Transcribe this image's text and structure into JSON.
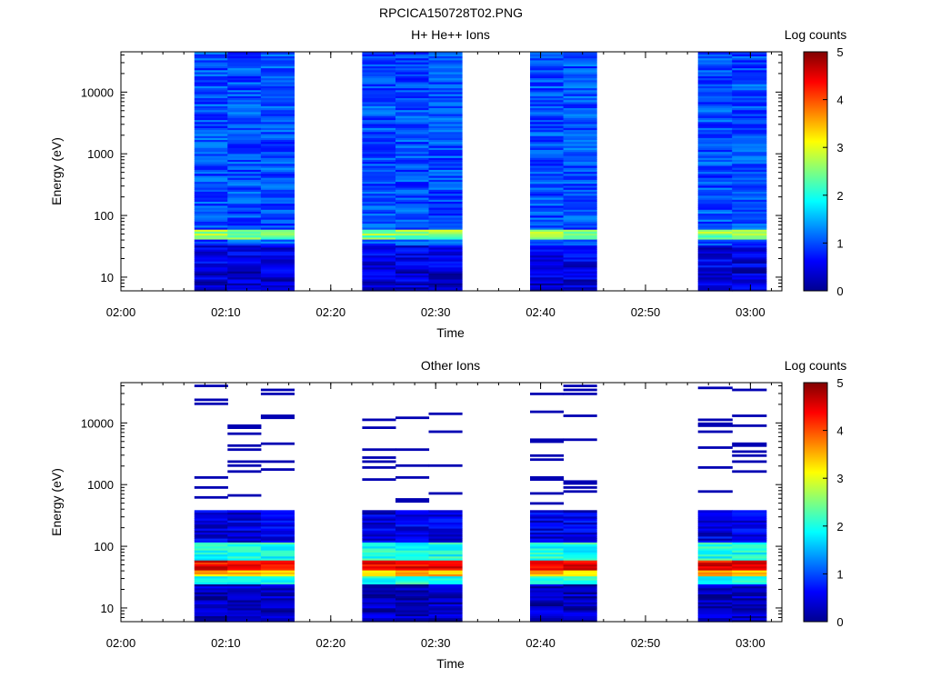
{
  "page_title": "RPCICA150728T02.PNG",
  "chart_data": [
    {
      "type": "heatmap",
      "title": "H+ He++ Ions",
      "xlabel": "Time",
      "ylabel": "Energy (eV)",
      "colorbar_label": "Log counts",
      "colorbar_ticks": [
        "0",
        "1",
        "2",
        "3",
        "4",
        "5"
      ],
      "clim": [
        0,
        5
      ],
      "colormap": "jet",
      "yscale": "log",
      "ylim": [
        6,
        45000
      ],
      "y_ticks": [
        "10",
        "100",
        "1000",
        "10000"
      ],
      "x_ticks": [
        "02:00",
        "02:10",
        "02:20",
        "02:30",
        "02:40",
        "02:50",
        "03:00"
      ],
      "xlim_minutes": [
        0,
        63
      ],
      "data_gaps": "white (no data) between sweep blocks",
      "time_blocks": [
        {
          "start": "02:07",
          "end": "02:16:30",
          "columns": 3
        },
        {
          "start": "02:23",
          "end": "02:32:30",
          "columns": 3
        },
        {
          "start": "02:39",
          "end": "02:45:20",
          "columns": 2
        },
        {
          "start": "02:55",
          "end": "03:01:30",
          "columns": 2
        }
      ],
      "energy_profile": [
        {
          "energy_range": "6-14 eV",
          "log_counts": 0.4
        },
        {
          "energy_range": "14-25 eV",
          "log_counts": 0.5
        },
        {
          "energy_range": "25-32 eV",
          "log_counts": 0.5
        },
        {
          "energy_range": "32-40 eV",
          "log_counts": 1.0
        },
        {
          "energy_range": "40-48 eV",
          "log_counts": 2.4
        },
        {
          "energy_range": "48-58 eV",
          "log_counts": 2.6
        },
        {
          "energy_range": "58-45000 eV",
          "log_counts": 1.0
        }
      ]
    },
    {
      "type": "heatmap",
      "title": "Other Ions",
      "xlabel": "Time",
      "ylabel": "Energy (eV)",
      "colorbar_label": "Log counts",
      "colorbar_ticks": [
        "0",
        "1",
        "2",
        "3",
        "4",
        "5"
      ],
      "clim": [
        0,
        5
      ],
      "colormap": "jet",
      "yscale": "log",
      "ylim": [
        6,
        45000
      ],
      "y_ticks": [
        "10",
        "100",
        "1000",
        "10000"
      ],
      "x_ticks": [
        "02:00",
        "02:10",
        "02:20",
        "02:30",
        "02:40",
        "02:50",
        "03:00"
      ],
      "xlim_minutes": [
        0,
        63
      ],
      "data_gaps": "white (no data) between sweep blocks",
      "time_blocks": [
        {
          "start": "02:07",
          "end": "02:16:30",
          "columns": 3
        },
        {
          "start": "02:23",
          "end": "02:32:30",
          "columns": 3
        },
        {
          "start": "02:39",
          "end": "02:45:20",
          "columns": 2
        },
        {
          "start": "02:55",
          "end": "03:01:30",
          "columns": 2
        }
      ],
      "energy_profile": [
        {
          "energy_range": "6-25 eV",
          "log_counts": 0.3
        },
        {
          "energy_range": "25-32 eV",
          "log_counts": 2.0
        },
        {
          "energy_range": "32-40 eV",
          "log_counts": 3.4
        },
        {
          "energy_range": "40-58 eV",
          "log_counts": 4.4
        },
        {
          "energy_range": "58-120 eV",
          "log_counts": 2.0
        },
        {
          "energy_range": "120-380 eV",
          "log_counts": 0.5
        },
        {
          "energy_range": "380-45000 eV",
          "log_counts": "sparse single-count lines (~0.3)"
        }
      ]
    }
  ]
}
